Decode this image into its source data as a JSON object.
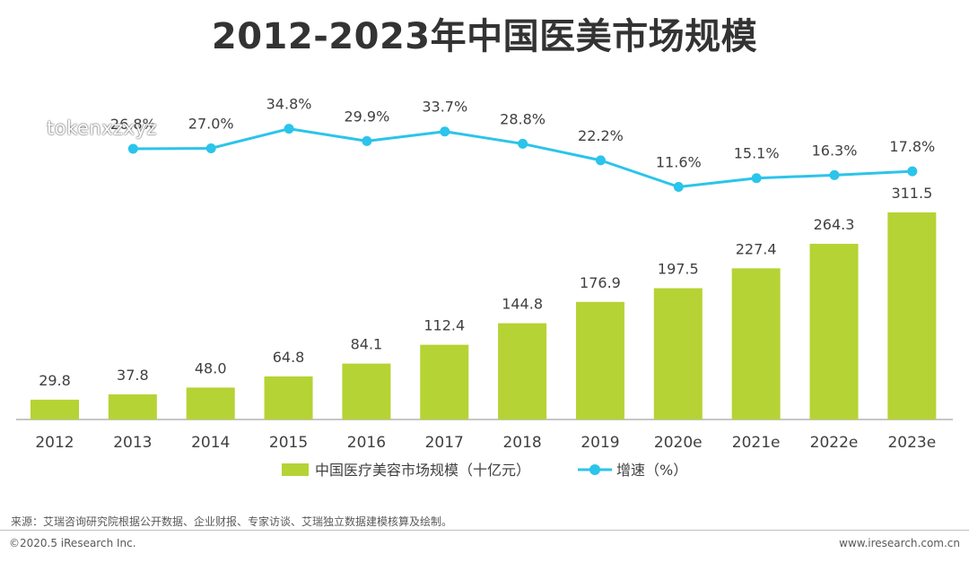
{
  "title": "2012-2023年中国医美市场规模",
  "watermark": "tokenxzxyz",
  "chart_data": {
    "type": "bar",
    "categories": [
      "2012",
      "2013",
      "2014",
      "2015",
      "2016",
      "2017",
      "2018",
      "2019",
      "2020e",
      "2021e",
      "2022e",
      "2023e"
    ],
    "series": [
      {
        "name": "中国医疗美容市场规模（十亿元）",
        "type": "bar",
        "color": "#b5d334",
        "values": [
          29.8,
          37.8,
          48.0,
          64.8,
          84.1,
          112.4,
          144.8,
          176.9,
          197.5,
          227.4,
          264.3,
          311.5
        ],
        "labels": [
          "29.8",
          "37.8",
          "48.0",
          "64.8",
          "84.1",
          "112.4",
          "144.8",
          "176.9",
          "197.5",
          "227.4",
          "264.3",
          "311.5"
        ]
      },
      {
        "name": "增速（%）",
        "type": "line",
        "color": "#2bc4ea",
        "values": [
          null,
          26.8,
          27.0,
          34.8,
          29.9,
          33.7,
          28.8,
          22.2,
          11.6,
          15.1,
          16.3,
          17.8
        ],
        "labels": [
          "",
          "26.8%",
          "27.0%",
          "34.8%",
          "29.9%",
          "33.7%",
          "28.8%",
          "22.2%",
          "11.6%",
          "15.1%",
          "16.3%",
          "17.8%"
        ]
      }
    ],
    "grid": false,
    "legend": "bottom-center"
  },
  "footer": {
    "source": "来源：艾瑞咨询研究院根据公开数据、企业财报、专家访谈、艾瑞独立数据建模核算及绘制。",
    "copyright": "©2020.5 iResearch Inc.",
    "website": "www.iresearch.com.cn"
  }
}
